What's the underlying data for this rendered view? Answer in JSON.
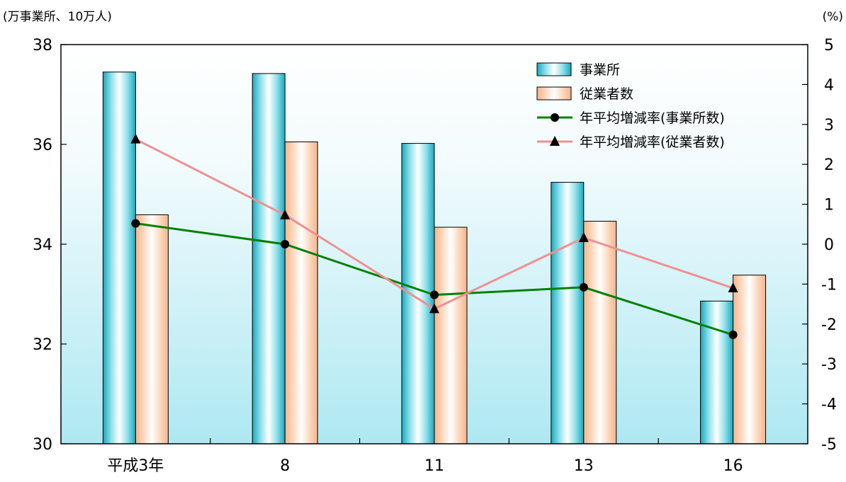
{
  "chart_data": {
    "type": "bar",
    "left_unit_label": "(万事業所、10万人)",
    "right_unit_label": "(%)",
    "categories": [
      "平成3年",
      "8",
      "11",
      "13",
      "16"
    ],
    "left_axis": {
      "min": 30,
      "max": 38,
      "ticks": [
        "30",
        "32",
        "34",
        "36",
        "38"
      ]
    },
    "right_axis": {
      "min": -5,
      "max": 5,
      "ticks": [
        "5",
        "4",
        "3",
        "2",
        "1",
        "0",
        "-1",
        "-2",
        "-3",
        "-4",
        "-5"
      ]
    },
    "series": [
      {
        "name": "事業所",
        "kind": "bar",
        "axis": "left",
        "color": "#40c0d0",
        "values": [
          37.45,
          37.42,
          36.02,
          35.24,
          32.86
        ]
      },
      {
        "name": "従業者数",
        "kind": "bar",
        "axis": "left",
        "color": "#f8c090",
        "values": [
          34.59,
          36.05,
          34.34,
          34.46,
          33.38
        ]
      },
      {
        "name": "年平均増減率(事業所数)",
        "kind": "line",
        "axis": "right",
        "color": "#008000",
        "marker": "circle",
        "values": [
          0.52,
          0.0,
          -1.27,
          -1.08,
          -2.27
        ]
      },
      {
        "name": "年平均増減率(従業者数)",
        "kind": "line",
        "axis": "right",
        "color": "#f09090",
        "marker": "triangle",
        "values": [
          2.63,
          0.73,
          -1.62,
          0.16,
          -1.1
        ]
      }
    ],
    "legend_position": "top-right",
    "grid": false
  }
}
